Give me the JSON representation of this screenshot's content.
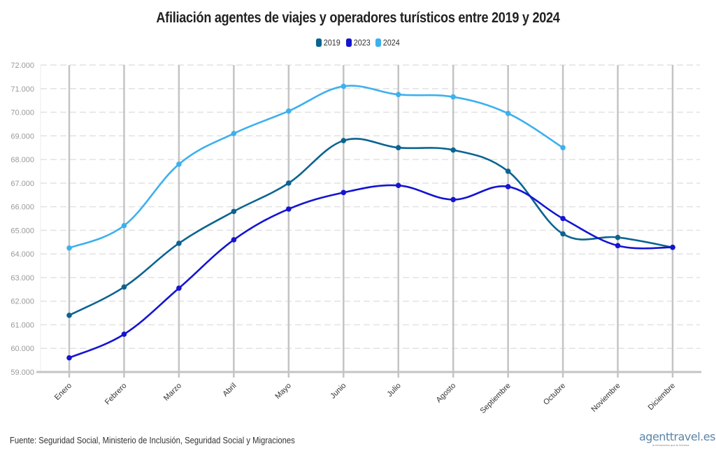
{
  "chart_data": {
    "type": "line",
    "title": "Afiliación agentes de viajes y operadores turísticos entre 2019 y 2024",
    "xlabel": "",
    "ylabel": "",
    "categories": [
      "Enero",
      "Febrero",
      "Marzo",
      "Abril",
      "Mayo",
      "Junio",
      "Julio",
      "Agosto",
      "Septiembre",
      "Octubre",
      "Noviembre",
      "Diciembre"
    ],
    "ylim": [
      59000,
      72000
    ],
    "yticks": [
      59000,
      60000,
      61000,
      62000,
      63000,
      64000,
      65000,
      66000,
      67000,
      68000,
      69000,
      70000,
      71000,
      72000
    ],
    "ytick_labels": [
      "59.000",
      "60.000",
      "61.000",
      "62.000",
      "63.000",
      "64.000",
      "65.000",
      "66.000",
      "67.000",
      "68.000",
      "69.000",
      "70.000",
      "71.000",
      "72.000"
    ],
    "grid": true,
    "legend_position": "top-center",
    "series": [
      {
        "name": "2019",
        "color": "#0a6491",
        "values": [
          61400,
          62600,
          64450,
          65800,
          67000,
          68800,
          68500,
          68400,
          67500,
          64850,
          64700,
          64280
        ]
      },
      {
        "name": "2023",
        "color": "#1414d2",
        "values": [
          59600,
          60600,
          62550,
          64600,
          65900,
          66600,
          66900,
          66300,
          66850,
          65500,
          64350,
          64280
        ]
      },
      {
        "name": "2024",
        "color": "#3db0ee",
        "values": [
          64250,
          65200,
          67800,
          69100,
          70050,
          71100,
          70750,
          70650,
          69950,
          68500,
          null,
          null
        ]
      }
    ]
  },
  "legend": [
    {
      "label": "2019",
      "color": "#0a6491"
    },
    {
      "label": "2023",
      "color": "#1414d2"
    },
    {
      "label": "2024",
      "color": "#3db0ee"
    }
  ],
  "footer": {
    "source": "Fuente: Seguridad Social, Ministerio de Inclusión, Seguridad Social y Migraciones",
    "brand": "agenttravel.es",
    "brand_tagline": "la información que te interesa"
  }
}
